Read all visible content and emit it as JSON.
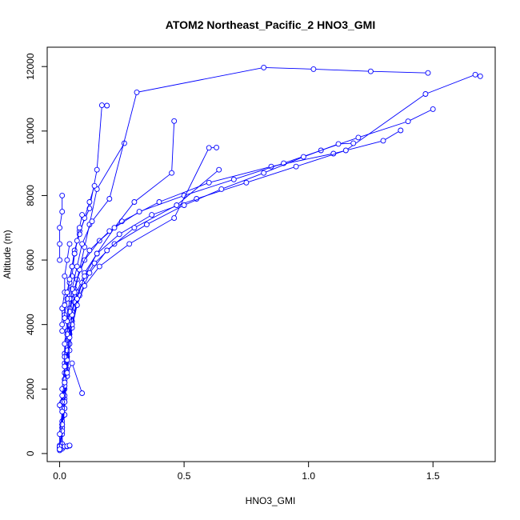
{
  "chart_data": {
    "type": "scatter",
    "title": "ATOM2 Northeast_Pacific_2 HNO3_GMI",
    "xlabel": "HNO3_GMI",
    "ylabel": "Altitude (m)",
    "xlim": [
      -0.05,
      1.75
    ],
    "ylim": [
      -250,
      12600
    ],
    "xticks": [
      0.0,
      0.5,
      1.0,
      1.5
    ],
    "xtick_labels": [
      "0.0",
      "0.5",
      "1.0",
      "1.5"
    ],
    "yticks": [
      0,
      2000,
      4000,
      6000,
      8000,
      10000,
      12000
    ],
    "ytick_labels": [
      "0",
      "2000",
      "4000",
      "6000",
      "8000",
      "10000",
      "12000"
    ],
    "grid": false,
    "color": "#0000ff",
    "marker": "open-circle",
    "series": [
      {
        "x": [
          0.01,
          0.01,
          0.02,
          0.02,
          0.02,
          0.03,
          0.04,
          0.05,
          0.07,
          0.1,
          0.16,
          0.25,
          0.4,
          0.6,
          0.85,
          1.1,
          1.3,
          1.37
        ],
        "y": [
          150,
          600,
          1200,
          2000,
          2800,
          3500,
          4200,
          4800,
          5400,
          6000,
          6600,
          7200,
          7800,
          8400,
          8900,
          9300,
          9700,
          10020
        ]
      },
      {
        "x": [
          0.0,
          0.01,
          0.01,
          0.02,
          0.02,
          0.03,
          0.04,
          0.06,
          0.08,
          0.12,
          0.2,
          0.32,
          0.5,
          0.7,
          0.9,
          1.05,
          1.2,
          1.4,
          1.5
        ],
        "y": [
          250,
          800,
          1500,
          2300,
          3100,
          3800,
          4500,
          5100,
          5700,
          6300,
          6900,
          7500,
          8000,
          8500,
          9000,
          9400,
          9800,
          10300,
          10680
        ]
      },
      {
        "x": [
          0.0,
          0.01,
          0.02,
          0.02,
          0.03,
          0.04,
          0.05,
          0.07,
          0.1,
          0.15,
          0.24,
          0.37,
          0.55,
          0.75,
          0.95,
          1.15,
          1.47,
          1.67,
          1.69
        ],
        "y": [
          100,
          700,
          1400,
          2200,
          3000,
          3700,
          4400,
          5000,
          5600,
          6200,
          6800,
          7400,
          7900,
          8400,
          8900,
          9400,
          11150,
          11750,
          11700
        ]
      },
      {
        "x": [
          0.0,
          0.01,
          0.02,
          0.02,
          0.03,
          0.04,
          0.06,
          0.09,
          0.14,
          0.22,
          0.35,
          0.5,
          0.65,
          0.82,
          0.98,
          1.12,
          1.18
        ],
        "y": [
          200,
          900,
          1700,
          2500,
          3300,
          4000,
          4700,
          5300,
          5900,
          6500,
          7100,
          7700,
          8200,
          8700,
          9200,
          9600,
          9620
        ]
      },
      {
        "x": [
          0.01,
          0.01,
          0.02,
          0.03,
          0.04,
          0.05,
          0.08,
          0.12,
          0.19,
          0.3,
          0.47,
          0.64
        ],
        "y": [
          300,
          1000,
          1800,
          2600,
          3400,
          4100,
          4900,
          5600,
          6300,
          7000,
          7700,
          8800
        ]
      },
      {
        "x": [
          0.0,
          0.01,
          0.02,
          0.03,
          0.04,
          0.05,
          0.07,
          0.1,
          0.16,
          0.28,
          0.46,
          0.6,
          0.63
        ],
        "y": [
          150,
          800,
          1600,
          2400,
          3200,
          3900,
          4600,
          5200,
          5800,
          6500,
          7300,
          9480,
          9490
        ]
      },
      {
        "x": [
          0.01,
          0.01,
          0.02,
          0.03,
          0.03,
          0.05,
          0.07,
          0.1,
          0.15,
          0.22,
          0.3,
          0.45,
          0.46
        ],
        "y": [
          200,
          900,
          1600,
          2400,
          3200,
          4000,
          4800,
          5500,
          6200,
          7000,
          7800,
          8700,
          10310
        ]
      },
      {
        "x": [
          0.0,
          0.01,
          0.01,
          0.02,
          0.03,
          0.04,
          0.05,
          0.06,
          0.08,
          0.1,
          0.12,
          0.15,
          0.26
        ],
        "y": [
          180,
          700,
          1400,
          2100,
          2900,
          3600,
          4300,
          5000,
          5700,
          6400,
          7100,
          8200,
          9620
        ]
      },
      {
        "x": [
          0.0,
          0.01,
          0.01,
          0.02,
          0.02,
          0.03,
          0.04,
          0.05,
          0.07,
          0.09,
          0.13,
          0.2,
          0.31,
          0.82,
          1.02,
          1.25,
          1.48
        ],
        "y": [
          220,
          900,
          1600,
          2300,
          3000,
          3700,
          4400,
          5100,
          5800,
          6500,
          7200,
          7900,
          11200,
          11970,
          11920,
          11850,
          11800
        ]
      },
      {
        "x": [
          0.0,
          0.0,
          0.01,
          0.01,
          0.02,
          0.02,
          0.03,
          0.04,
          0.05,
          0.06,
          0.08,
          0.12,
          0.15,
          0.17,
          0.19
        ],
        "y": [
          130,
          600,
          1300,
          2000,
          2700,
          3400,
          4100,
          4800,
          5500,
          6200,
          6900,
          7600,
          8800,
          10800,
          10790
        ]
      },
      {
        "x": [
          0.01,
          0.02,
          0.03,
          0.04,
          0.05,
          0.06,
          0.08,
          0.1,
          0.12,
          0.14
        ],
        "y": [
          3800,
          4300,
          4800,
          5300,
          5800,
          6300,
          6800,
          7300,
          7800,
          8300
        ]
      },
      {
        "x": [
          0.01,
          0.01,
          0.02,
          0.02,
          0.03,
          0.04
        ],
        "y": [
          4000,
          4500,
          5000,
          5500,
          6000,
          6500
        ]
      },
      {
        "x": [
          0.0,
          0.01,
          0.02,
          0.03,
          0.05,
          0.09
        ],
        "y": [
          1500,
          1800,
          2200,
          2500,
          2800,
          1870
        ]
      },
      {
        "x": [
          0.0,
          0.0,
          0.0,
          0.01,
          0.01
        ],
        "y": [
          6000,
          6500,
          7000,
          7500,
          8000
        ]
      },
      {
        "x": [
          0.02,
          0.02,
          0.03,
          0.04,
          0.05,
          0.06,
          0.07,
          0.08,
          0.09
        ],
        "y": [
          4200,
          4600,
          5000,
          5400,
          5800,
          6200,
          6600,
          7000,
          7400
        ]
      },
      {
        "x": [
          0.02,
          0.03,
          0.03,
          0.04,
          0.04
        ],
        "y": [
          220,
          220,
          230,
          240,
          250
        ]
      }
    ]
  }
}
